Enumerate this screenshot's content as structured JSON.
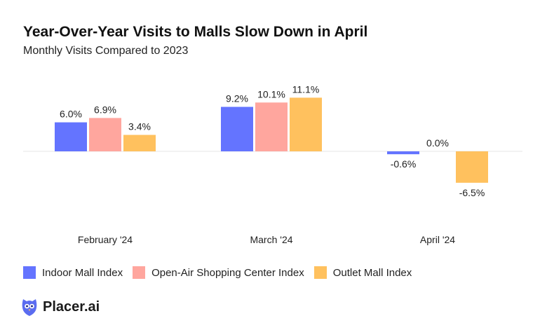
{
  "chart_data": {
    "type": "bar",
    "title": "Year-Over-Year Visits to Malls Slow Down in April",
    "subtitle": "Monthly Visits Compared to 2023",
    "categories": [
      "February '24",
      "March '24",
      "April '24"
    ],
    "series": [
      {
        "name": "Indoor Mall Index",
        "color": "#6474ff",
        "values": [
          6.0,
          9.2,
          -0.6
        ],
        "labels": [
          "6.0%",
          "9.2%",
          "-0.6%"
        ]
      },
      {
        "name": "Open-Air Shopping Center Index",
        "color": "#ffa69e",
        "values": [
          6.9,
          10.1,
          0.0
        ],
        "labels": [
          "6.9%",
          "10.1%",
          "0.0%"
        ]
      },
      {
        "name": "Outlet Mall Index",
        "color": "#ffc15e",
        "values": [
          3.4,
          11.1,
          -6.5
        ],
        "labels": [
          "3.4%",
          "11.1%",
          "-6.5%"
        ]
      }
    ],
    "ylim": [
      -8,
      12
    ],
    "grid": false,
    "legend_position": "bottom-left"
  },
  "brand": {
    "name": "Placer.ai",
    "icon": "owl-logo-icon",
    "color": "#5b6cf0"
  }
}
